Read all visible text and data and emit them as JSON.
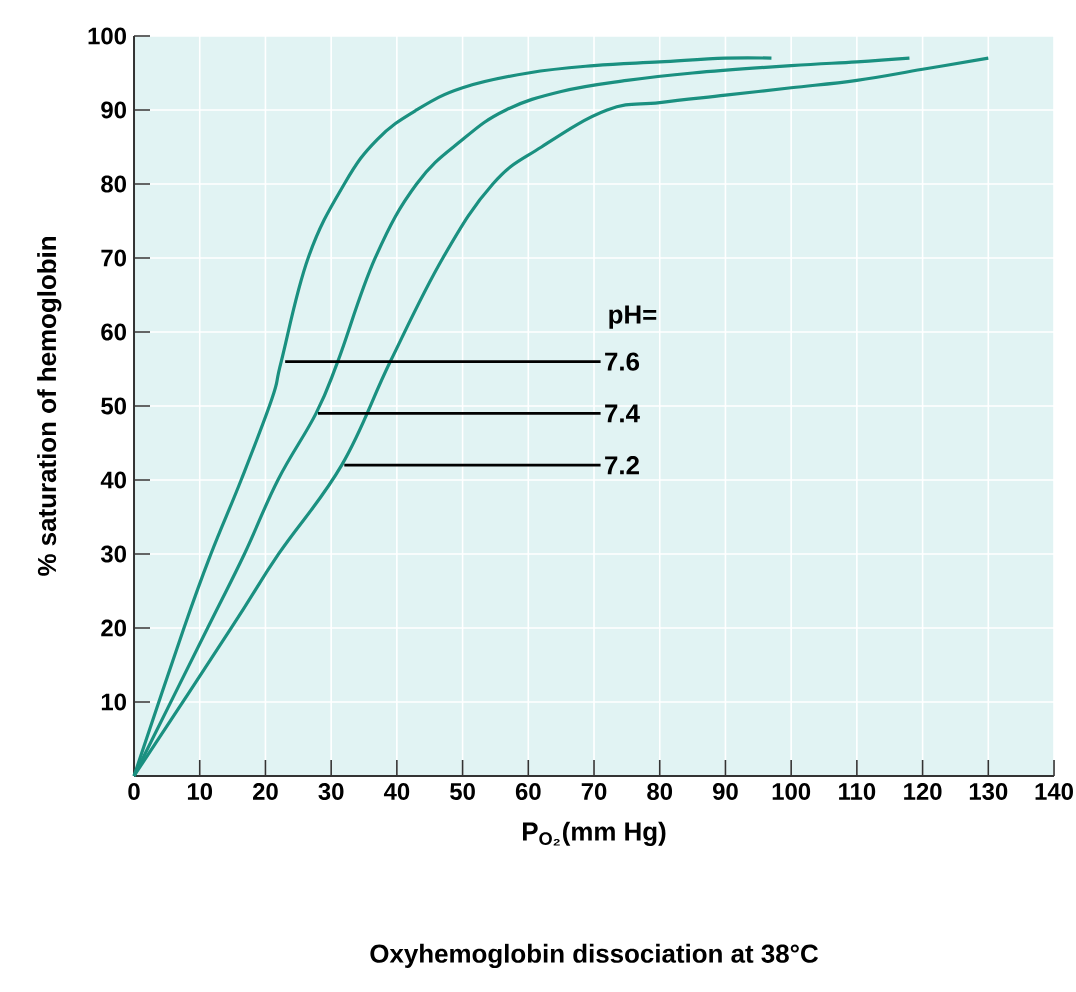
{
  "chart_data": {
    "type": "line",
    "title": "Oxyhemoglobin dissociation at 38°C",
    "xlabel": "P$_{O₂}$(mm Hg)",
    "ylabel": "% saturation of hemoglobin",
    "xlim": [
      0,
      140
    ],
    "xticks": [
      0,
      10,
      20,
      30,
      40,
      50,
      60,
      70,
      80,
      90,
      100,
      110,
      120,
      130,
      140
    ],
    "ylim": [
      0,
      100
    ],
    "yticks": [
      10,
      20,
      30,
      40,
      50,
      60,
      70,
      80,
      90,
      100
    ],
    "grid": true,
    "series": [
      {
        "color": "#1a9080",
        "x": [
          0,
          7.6,
          11.7,
          16.3,
          21,
          22.4,
          26.5,
          32,
          37,
          43,
          50,
          60,
          70,
          80,
          90,
          97
        ],
        "values": [
          0,
          20,
          30,
          40,
          51,
          56,
          70,
          80,
          86,
          90,
          93,
          95,
          96,
          96.5,
          97,
          97
        ]
      },
      {
        "color": "#1a9080",
        "x": [
          0,
          11.2,
          16.8,
          21.9,
          27.7,
          31,
          36.7,
          43,
          50,
          56.6,
          65,
          75,
          85,
          100,
          110,
          118
        ],
        "values": [
          0,
          20,
          30,
          40,
          49,
          56,
          70,
          80,
          86,
          90,
          92.5,
          94,
          95,
          96,
          96.5,
          97
        ]
      },
      {
        "color": "#1a9080",
        "x": [
          0,
          14.8,
          22,
          31.6,
          39,
          47,
          54.6,
          62,
          72,
          80,
          90,
          100,
          110,
          120,
          130
        ],
        "values": [
          0,
          20,
          30,
          42,
          56,
          70,
          80,
          85,
          90,
          91,
          92,
          93,
          94,
          95.5,
          97
        ]
      }
    ],
    "annotations": [
      "pH=",
      {
        "text": "7.6",
        "x": 23,
        "y": 56
      },
      {
        "text": "7.4",
        "x": 28,
        "y": 49
      },
      {
        "text": "7.2",
        "x": 32,
        "y": 42
      }
    ]
  }
}
